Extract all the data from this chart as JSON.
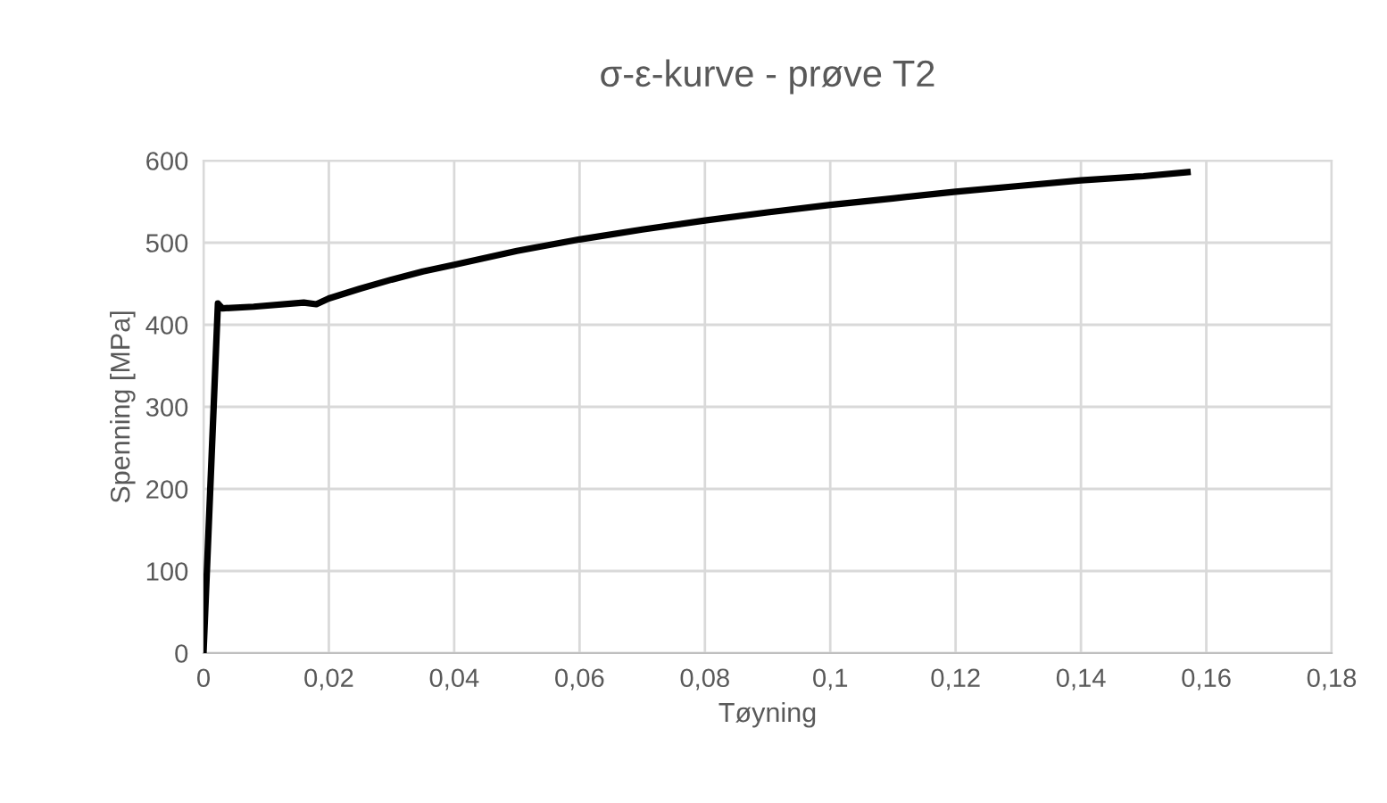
{
  "chart_data": {
    "type": "line",
    "title": "σ-ε-kurve - prøve T2",
    "xlabel": "Tøyning",
    "ylabel": "Spenning [MPa]",
    "series": [
      {
        "color": "#000000",
        "x": [
          0,
          0.0023,
          0.003,
          0.008,
          0.016,
          0.018,
          0.02,
          0.025,
          0.03,
          0.035,
          0.04,
          0.05,
          0.06,
          0.07,
          0.08,
          0.09,
          0.1,
          0.11,
          0.12,
          0.13,
          0.14,
          0.15,
          0.157
        ],
        "values": [
          0,
          426,
          420,
          422,
          427,
          425,
          432,
          444,
          455,
          465,
          473,
          490,
          504,
          516,
          527,
          537,
          546,
          554,
          562,
          569,
          576,
          581,
          586
        ]
      }
    ],
    "xlim": [
      0,
      0.18
    ],
    "xticks": [
      0,
      {
        "value": 0.02,
        "label": "0,02"
      },
      {
        "value": 0.04,
        "label": "0,04"
      },
      {
        "value": 0.06,
        "label": "0,06"
      },
      {
        "value": 0.08,
        "label": "0,08"
      },
      {
        "value": 0.1,
        "label": "0,1"
      },
      {
        "value": 0.12,
        "label": "0,12"
      },
      {
        "value": 0.14,
        "label": "0,14"
      },
      {
        "value": 0.16,
        "label": "0,16"
      },
      {
        "value": 0.18,
        "label": "0,18"
      }
    ],
    "ylim": [
      0,
      600
    ],
    "yticks": [
      0,
      100,
      200,
      300,
      400,
      500,
      600
    ],
    "grid": true,
    "marker": "none",
    "line_style": "solid",
    "legend": false
  }
}
